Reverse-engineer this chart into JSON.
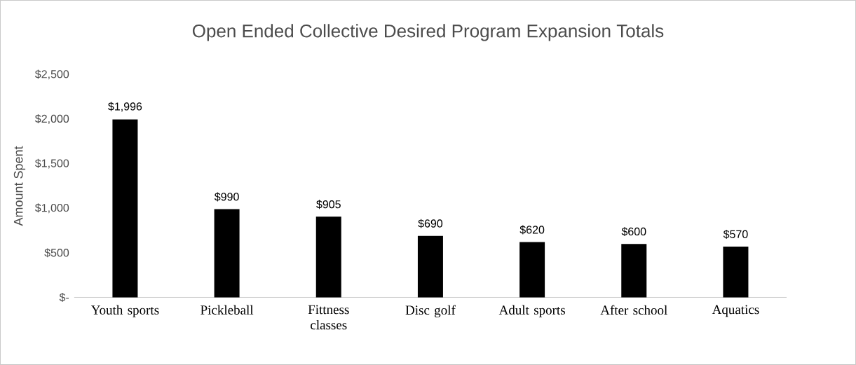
{
  "chart_data": {
    "type": "bar",
    "title": "Open Ended Collective Desired Program Expansion Totals",
    "ylabel": "Amount Spent",
    "categories": [
      "Youth sports",
      "Pickleball",
      "Fittness classes",
      "Disc golf",
      "Adult sports",
      "After school",
      "Aquatics"
    ],
    "values": [
      1996,
      990,
      905,
      690,
      620,
      600,
      570
    ],
    "value_labels": [
      "$1,996",
      "$990",
      "$905",
      "$690",
      "$620",
      "$600",
      "$570"
    ],
    "color": "#000000",
    "ylim": [
      0,
      2500
    ],
    "yticks": [
      {
        "value": 0,
        "label": "$-"
      },
      {
        "value": 500,
        "label": "$500"
      },
      {
        "value": 1000,
        "label": "$1,000"
      },
      {
        "value": 1500,
        "label": "$1,500"
      },
      {
        "value": 2000,
        "label": "$2,000"
      },
      {
        "value": 2500,
        "label": "$2,500"
      }
    ],
    "grid": false
  }
}
